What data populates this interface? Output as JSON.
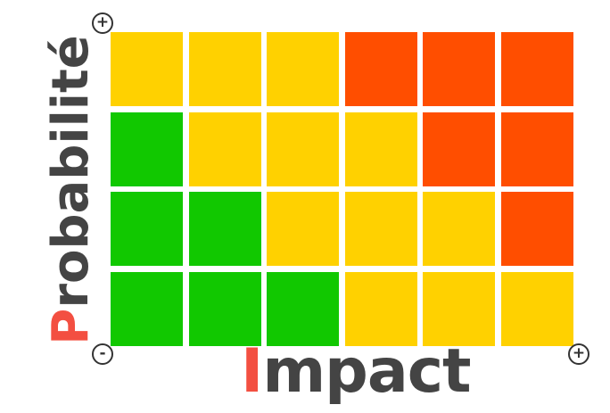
{
  "axes": {
    "y_label_first": "P",
    "y_label_rest": "robabilité",
    "x_label_first": "I",
    "x_label_rest": "mpact"
  },
  "markers": {
    "top": "+",
    "origin": "-",
    "right": "+"
  },
  "colors": {
    "low": "#11c800",
    "medium": "#ffd100",
    "high": "#ff4e00",
    "accent_letter": "#f34f41",
    "text": "#444444"
  },
  "grid": {
    "rows": [
      [
        "medium",
        "medium",
        "medium",
        "high",
        "high",
        "high"
      ],
      [
        "low",
        "medium",
        "medium",
        "medium",
        "high",
        "high"
      ],
      [
        "low",
        "low",
        "medium",
        "medium",
        "medium",
        "high"
      ],
      [
        "low",
        "low",
        "low",
        "medium",
        "medium",
        "medium"
      ]
    ]
  }
}
